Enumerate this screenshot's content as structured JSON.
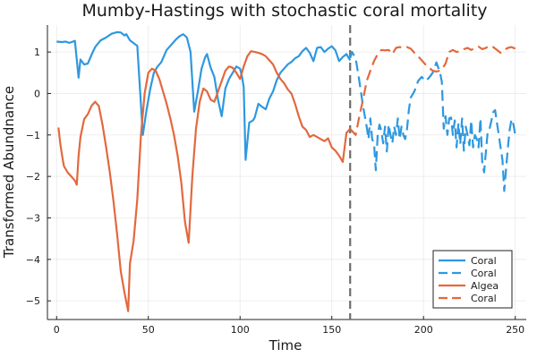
{
  "chart_data": {
    "type": "line",
    "title": "Mumby-Hastings with stochastic coral mortality",
    "xlabel": "Time",
    "ylabel": "Transformed Abundnance",
    "xlim": [
      -5,
      256
    ],
    "ylim": [
      -5.45,
      1.65
    ],
    "xticks": [
      0,
      50,
      100,
      150,
      200,
      250
    ],
    "yticks": [
      -5,
      -4,
      -3,
      -2,
      -1,
      0,
      1
    ],
    "grid": true,
    "legend_position": "bottom-right",
    "vline": {
      "x": 160,
      "color": "#6e6e6e",
      "style": "dashed"
    },
    "series": [
      {
        "name": "Coral",
        "color": "#2e98e0",
        "style": "solid",
        "points": [
          [
            0,
            1.25
          ],
          [
            3,
            1.24
          ],
          [
            5,
            1.25
          ],
          [
            7,
            1.22
          ],
          [
            10,
            1.27
          ],
          [
            12,
            0.38
          ],
          [
            13,
            0.82
          ],
          [
            15,
            0.7
          ],
          [
            17,
            0.72
          ],
          [
            19,
            0.93
          ],
          [
            21,
            1.12
          ],
          [
            24,
            1.28
          ],
          [
            27,
            1.35
          ],
          [
            30,
            1.44
          ],
          [
            33,
            1.48
          ],
          [
            35,
            1.47
          ],
          [
            37,
            1.4
          ],
          [
            38,
            1.43
          ],
          [
            40,
            1.28
          ],
          [
            44,
            1.15
          ],
          [
            47,
            -1.0
          ],
          [
            49,
            -0.4
          ],
          [
            51,
            0.1
          ],
          [
            53,
            0.5
          ],
          [
            55,
            0.65
          ],
          [
            57,
            0.75
          ],
          [
            60,
            1.05
          ],
          [
            63,
            1.2
          ],
          [
            65,
            1.3
          ],
          [
            67,
            1.38
          ],
          [
            69,
            1.43
          ],
          [
            71,
            1.35
          ],
          [
            73,
            1.0
          ],
          [
            75,
            -0.44
          ],
          [
            77,
            0.05
          ],
          [
            79,
            0.6
          ],
          [
            81,
            0.88
          ],
          [
            82,
            0.95
          ],
          [
            84,
            0.62
          ],
          [
            86,
            0.4
          ],
          [
            88,
            -0.15
          ],
          [
            90,
            -0.55
          ],
          [
            92,
            0.12
          ],
          [
            94,
            0.35
          ],
          [
            96,
            0.5
          ],
          [
            98,
            0.65
          ],
          [
            100,
            0.6
          ],
          [
            101,
            0.42
          ],
          [
            102,
            0.15
          ],
          [
            103,
            -1.6
          ],
          [
            105,
            -0.7
          ],
          [
            107,
            -0.65
          ],
          [
            108,
            -0.58
          ],
          [
            110,
            -0.25
          ],
          [
            112,
            -0.32
          ],
          [
            114,
            -0.38
          ],
          [
            116,
            -0.12
          ],
          [
            118,
            0.05
          ],
          [
            120,
            0.32
          ],
          [
            122,
            0.5
          ],
          [
            124,
            0.6
          ],
          [
            126,
            0.7
          ],
          [
            128,
            0.76
          ],
          [
            130,
            0.85
          ],
          [
            132,
            0.9
          ],
          [
            134,
            1.02
          ],
          [
            136,
            1.1
          ],
          [
            138,
            0.98
          ],
          [
            140,
            0.78
          ],
          [
            142,
            1.1
          ],
          [
            144,
            1.12
          ],
          [
            146,
            1.0
          ],
          [
            148,
            1.08
          ],
          [
            150,
            1.14
          ],
          [
            152,
            1.04
          ],
          [
            154,
            0.78
          ],
          [
            156,
            0.88
          ],
          [
            158,
            0.95
          ],
          [
            160,
            0.8
          ]
        ]
      },
      {
        "name": "Coral",
        "color": "#2e98e0",
        "style": "dashed",
        "points": [
          [
            160,
            0.85
          ],
          [
            161,
            1.0
          ],
          [
            163,
            0.85
          ],
          [
            165,
            0.3
          ],
          [
            167,
            -0.3
          ],
          [
            169,
            -0.8
          ],
          [
            170,
            -1.1
          ],
          [
            171,
            -0.6
          ],
          [
            172,
            -1.1
          ],
          [
            173,
            -1.2
          ],
          [
            174,
            -1.85
          ],
          [
            175,
            -1.0
          ],
          [
            176,
            -0.75
          ],
          [
            177,
            -0.9
          ],
          [
            178,
            -1.2
          ],
          [
            179,
            -0.8
          ],
          [
            180,
            -1.4
          ],
          [
            181,
            -0.75
          ],
          [
            182,
            -1.0
          ],
          [
            183,
            -1.2
          ],
          [
            184,
            -0.8
          ],
          [
            185,
            -1.0
          ],
          [
            186,
            -0.6
          ],
          [
            187,
            -1.1
          ],
          [
            188,
            -0.8
          ],
          [
            189,
            -1.0
          ],
          [
            190,
            -1.1
          ],
          [
            191,
            -0.85
          ],
          [
            192,
            -0.4
          ],
          [
            193,
            -0.1
          ],
          [
            195,
            0.05
          ],
          [
            197,
            0.3
          ],
          [
            199,
            0.4
          ],
          [
            201,
            0.3
          ],
          [
            203,
            0.38
          ],
          [
            205,
            0.5
          ],
          [
            207,
            0.75
          ],
          [
            209,
            0.5
          ],
          [
            210,
            0.28
          ],
          [
            211,
            -0.85
          ],
          [
            212,
            -0.55
          ],
          [
            213,
            -1.0
          ],
          [
            214,
            -0.6
          ],
          [
            215,
            -0.58
          ],
          [
            216,
            -1.0
          ],
          [
            217,
            -0.65
          ],
          [
            218,
            -1.3
          ],
          [
            219,
            -0.72
          ],
          [
            220,
            -1.22
          ],
          [
            221,
            -0.6
          ],
          [
            222,
            -1.38
          ],
          [
            223,
            -0.8
          ],
          [
            224,
            -1.0
          ],
          [
            225,
            -1.25
          ],
          [
            226,
            -0.65
          ],
          [
            227,
            -1.3
          ],
          [
            228,
            -1.0
          ],
          [
            229,
            -1.1
          ],
          [
            230,
            -1.3
          ],
          [
            231,
            -0.6
          ],
          [
            232,
            -1.65
          ],
          [
            233,
            -1.9
          ],
          [
            234,
            -1.4
          ],
          [
            235,
            -0.9
          ],
          [
            236,
            -0.85
          ],
          [
            237,
            -0.65
          ],
          [
            238,
            -0.45
          ],
          [
            239,
            -0.4
          ],
          [
            240,
            -0.7
          ],
          [
            241,
            -1.0
          ],
          [
            242,
            -1.3
          ],
          [
            243,
            -1.6
          ],
          [
            244,
            -2.35
          ],
          [
            245,
            -1.8
          ],
          [
            246,
            -1.3
          ],
          [
            247,
            -0.85
          ],
          [
            248,
            -0.62
          ],
          [
            249,
            -0.75
          ],
          [
            250,
            -1.0
          ]
        ]
      },
      {
        "name": "Algea",
        "color": "#e2693f",
        "style": "solid",
        "points": [
          [
            1,
            -0.82
          ],
          [
            2,
            -1.2
          ],
          [
            3,
            -1.5
          ],
          [
            4,
            -1.75
          ],
          [
            6,
            -1.9
          ],
          [
            8,
            -2.0
          ],
          [
            10,
            -2.1
          ],
          [
            11,
            -2.2
          ],
          [
            12,
            -1.5
          ],
          [
            13,
            -1.05
          ],
          [
            15,
            -0.62
          ],
          [
            17,
            -0.5
          ],
          [
            19,
            -0.3
          ],
          [
            21,
            -0.2
          ],
          [
            23,
            -0.3
          ],
          [
            25,
            -0.75
          ],
          [
            27,
            -1.3
          ],
          [
            29,
            -1.9
          ],
          [
            31,
            -2.6
          ],
          [
            33,
            -3.4
          ],
          [
            35,
            -4.3
          ],
          [
            37,
            -4.8
          ],
          [
            39,
            -5.25
          ],
          [
            40,
            -4.1
          ],
          [
            42,
            -3.55
          ],
          [
            44,
            -2.55
          ],
          [
            46,
            -1.0
          ],
          [
            48,
            0.0
          ],
          [
            50,
            0.5
          ],
          [
            52,
            0.6
          ],
          [
            54,
            0.55
          ],
          [
            56,
            0.35
          ],
          [
            58,
            0.05
          ],
          [
            60,
            -0.25
          ],
          [
            62,
            -0.6
          ],
          [
            64,
            -1.0
          ],
          [
            66,
            -1.5
          ],
          [
            68,
            -2.15
          ],
          [
            70,
            -3.1
          ],
          [
            72,
            -3.6
          ],
          [
            74,
            -2.0
          ],
          [
            76,
            -0.85
          ],
          [
            78,
            -0.2
          ],
          [
            80,
            0.12
          ],
          [
            82,
            0.05
          ],
          [
            84,
            -0.15
          ],
          [
            86,
            -0.2
          ],
          [
            88,
            0.05
          ],
          [
            90,
            0.3
          ],
          [
            92,
            0.55
          ],
          [
            94,
            0.65
          ],
          [
            96,
            0.62
          ],
          [
            98,
            0.5
          ],
          [
            100,
            0.35
          ],
          [
            102,
            0.65
          ],
          [
            104,
            0.9
          ],
          [
            106,
            1.02
          ],
          [
            108,
            1.0
          ],
          [
            110,
            0.98
          ],
          [
            112,
            0.95
          ],
          [
            114,
            0.9
          ],
          [
            116,
            0.8
          ],
          [
            118,
            0.7
          ],
          [
            120,
            0.5
          ],
          [
            122,
            0.35
          ],
          [
            124,
            0.25
          ],
          [
            126,
            0.1
          ],
          [
            128,
            0.0
          ],
          [
            130,
            -0.25
          ],
          [
            132,
            -0.55
          ],
          [
            134,
            -0.8
          ],
          [
            136,
            -0.88
          ],
          [
            138,
            -1.05
          ],
          [
            140,
            -1.0
          ],
          [
            142,
            -1.05
          ],
          [
            144,
            -1.1
          ],
          [
            146,
            -1.15
          ],
          [
            148,
            -1.08
          ],
          [
            150,
            -1.3
          ],
          [
            152,
            -1.38
          ],
          [
            154,
            -1.5
          ],
          [
            156,
            -1.65
          ],
          [
            158,
            -0.95
          ],
          [
            160,
            -0.85
          ]
        ]
      },
      {
        "name": "Coral",
        "color": "#e2693f",
        "style": "dashed",
        "points": [
          [
            160,
            -0.85
          ],
          [
            162,
            -0.95
          ],
          [
            163,
            -1.0
          ],
          [
            165,
            -0.55
          ],
          [
            167,
            -0.15
          ],
          [
            169,
            0.3
          ],
          [
            171,
            0.55
          ],
          [
            173,
            0.78
          ],
          [
            175,
            0.95
          ],
          [
            177,
            1.05
          ],
          [
            179,
            1.04
          ],
          [
            181,
            1.05
          ],
          [
            183,
            0.95
          ],
          [
            185,
            1.1
          ],
          [
            187,
            1.12
          ],
          [
            189,
            1.1
          ],
          [
            191,
            1.12
          ],
          [
            193,
            1.08
          ],
          [
            195,
            0.98
          ],
          [
            197,
            0.9
          ],
          [
            199,
            0.8
          ],
          [
            201,
            0.7
          ],
          [
            203,
            0.62
          ],
          [
            205,
            0.55
          ],
          [
            207,
            0.53
          ],
          [
            209,
            0.55
          ],
          [
            210,
            0.58
          ],
          [
            212,
            0.72
          ],
          [
            214,
            1.0
          ],
          [
            216,
            1.05
          ],
          [
            218,
            1.0
          ],
          [
            220,
            1.02
          ],
          [
            222,
            1.07
          ],
          [
            224,
            1.1
          ],
          [
            226,
            1.05
          ],
          [
            228,
            1.1
          ],
          [
            230,
            1.13
          ],
          [
            232,
            1.07
          ],
          [
            234,
            1.1
          ],
          [
            236,
            1.15
          ],
          [
            238,
            1.12
          ],
          [
            240,
            1.05
          ],
          [
            242,
            0.98
          ],
          [
            244,
            1.05
          ],
          [
            246,
            1.1
          ],
          [
            248,
            1.12
          ],
          [
            250,
            1.08
          ]
        ]
      }
    ]
  }
}
